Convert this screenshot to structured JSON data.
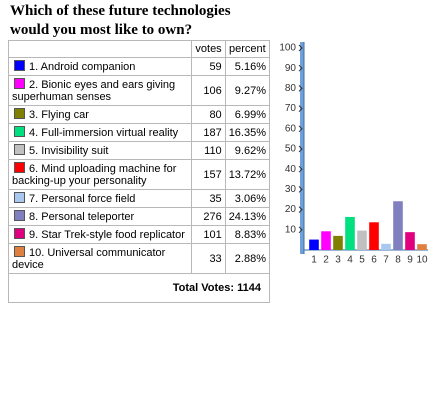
{
  "title": "Which of these future technologies would you most like to own?",
  "table": {
    "headers": [
      "votes",
      "percent"
    ],
    "rows": [
      {
        "label": "1. Android companion",
        "color": "#0000ff",
        "votes": 59,
        "percent": "5.16%"
      },
      {
        "label": "2. Bionic eyes and ears giving superhuman senses",
        "color": "#ff00ff",
        "votes": 106,
        "percent": "9.27%"
      },
      {
        "label": "3. Flying car",
        "color": "#808000",
        "votes": 80,
        "percent": "6.99%"
      },
      {
        "label": "4. Full-immersion virtual reality",
        "color": "#00e080",
        "votes": 187,
        "percent": "16.35%"
      },
      {
        "label": "5. Invisibility suit",
        "color": "#c0c0c0",
        "votes": 110,
        "percent": "9.62%"
      },
      {
        "label": "6. Mind uploading machine for backing-up your personality",
        "color": "#ff0000",
        "votes": 157,
        "percent": "13.72%"
      },
      {
        "label": "7. Personal force field",
        "color": "#a8c8f0",
        "votes": 35,
        "percent": "3.06%"
      },
      {
        "label": "8. Personal teleporter",
        "color": "#8080c0",
        "votes": 276,
        "percent": "24.13%"
      },
      {
        "label": "9. Star Trek-style food replicator",
        "color": "#e0007f",
        "votes": 101,
        "percent": "8.83%"
      },
      {
        "label": "10. Universal communicator device",
        "color": "#e08040",
        "votes": 33,
        "percent": "2.88%"
      }
    ],
    "total": {
      "label": "Total Votes:",
      "value": 1144
    }
  },
  "chart_data": {
    "type": "bar",
    "categories": [
      "1",
      "2",
      "3",
      "4",
      "5",
      "6",
      "7",
      "8",
      "9",
      "10"
    ],
    "values": [
      5.16,
      9.27,
      6.99,
      16.35,
      9.62,
      13.72,
      3.06,
      24.13,
      8.83,
      2.88
    ],
    "colors": [
      "#0000ff",
      "#ff00ff",
      "#808000",
      "#00e080",
      "#c0c0c0",
      "#ff0000",
      "#a8c8f0",
      "#8080c0",
      "#e0007f",
      "#e08040"
    ],
    "ylim": [
      0,
      100
    ],
    "yticks": [
      10,
      20,
      30,
      40,
      50,
      60,
      70,
      80,
      90,
      100
    ]
  }
}
